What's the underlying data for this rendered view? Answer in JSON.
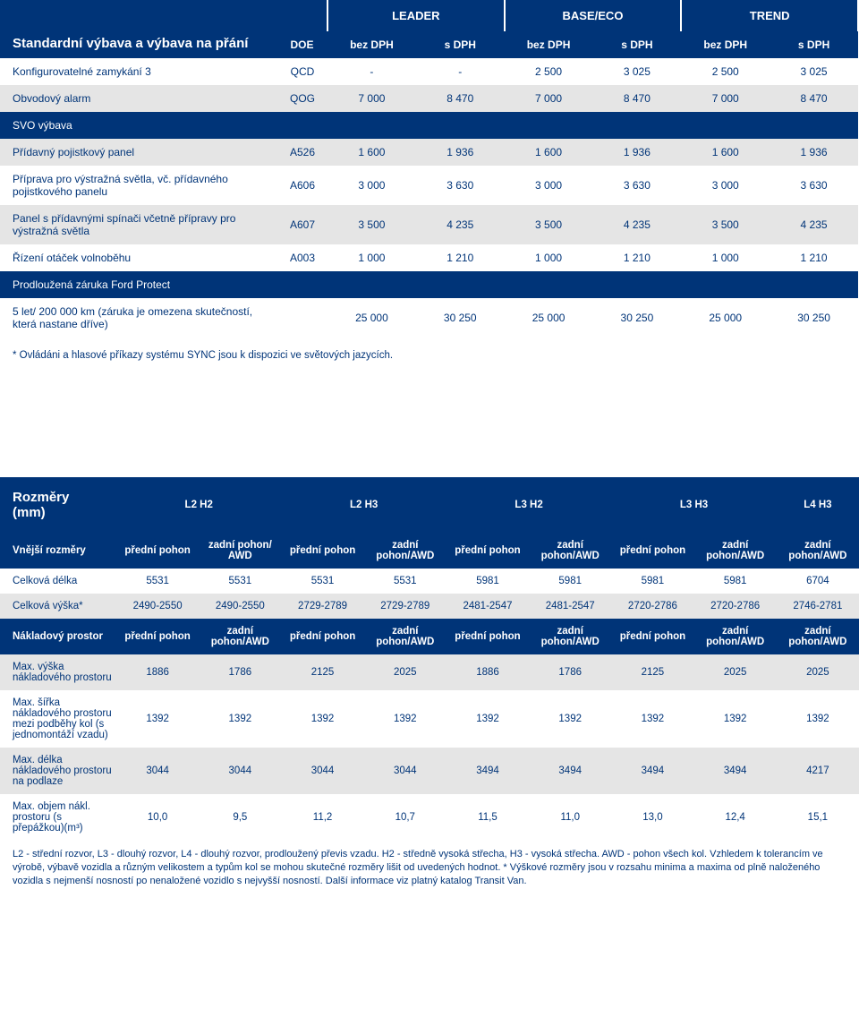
{
  "colors": {
    "brand": "#003478",
    "gray": "#e5e5e5",
    "white": "#ffffff"
  },
  "table1": {
    "title": "Standardní výbava a výbava na přání",
    "doe": "DOE",
    "groups": [
      "LEADER",
      "BASE/ECO",
      "TREND"
    ],
    "sub": [
      "bez DPH",
      "s DPH",
      "bez DPH",
      "s DPH",
      "bez DPH",
      "s DPH"
    ],
    "rows": [
      {
        "type": "data",
        "shade": "white",
        "label": "Konfigurovatelné zamykání 3",
        "code": "QCD",
        "v": [
          "-",
          "-",
          "2 500",
          "3 025",
          "2 500",
          "3 025"
        ]
      },
      {
        "type": "data",
        "shade": "gray",
        "label": "Obvodový alarm",
        "code": "QOG",
        "v": [
          "7 000",
          "8 470",
          "7 000",
          "8 470",
          "7 000",
          "8 470"
        ]
      },
      {
        "type": "section",
        "label": "SVO výbava"
      },
      {
        "type": "data",
        "shade": "gray",
        "label": "Přídavný pojistkový panel",
        "code": "A526",
        "v": [
          "1 600",
          "1 936",
          "1 600",
          "1 936",
          "1 600",
          "1 936"
        ]
      },
      {
        "type": "data",
        "shade": "white",
        "label": "Příprava pro výstražná světla, vč. přídavného pojistkového panelu",
        "code": "A606",
        "v": [
          "3 000",
          "3 630",
          "3 000",
          "3 630",
          "3 000",
          "3 630"
        ]
      },
      {
        "type": "data",
        "shade": "gray",
        "label": "Panel s přídavnými spínači  včetně přípravy pro výstražná světla",
        "code": "A607",
        "v": [
          "3 500",
          "4 235",
          "3 500",
          "4 235",
          "3 500",
          "4 235"
        ]
      },
      {
        "type": "data",
        "shade": "white",
        "label": "Řízení otáček volnoběhu",
        "code": "A003",
        "v": [
          "1 000",
          "1 210",
          "1 000",
          "1 210",
          "1 000",
          "1 210"
        ]
      },
      {
        "type": "section",
        "label": "Prodloužená záruka Ford Protect"
      },
      {
        "type": "data",
        "shade": "white",
        "label": "5 let/ 200 000 km (záruka je  omezena skutečností, která nastane dříve)",
        "code": "",
        "v": [
          "25 000",
          "30 250",
          "25 000",
          "30 250",
          "25 000",
          "30 250"
        ]
      }
    ],
    "footnote": "* Ovládáni a hlasové příkazy systému SYNC jsou k dispozici ve světových jazycích."
  },
  "table2": {
    "corner": "Rozměry (mm)",
    "groups": [
      "L2 H2",
      "L2 H3",
      "L3 H2",
      "L3 H3",
      "L4 H3"
    ],
    "sec_outer": {
      "label": "Vnější rozměry",
      "sub": [
        "přední pohon",
        "zadní pohon/ AWD",
        "přední pohon",
        "zadní pohon/AWD",
        "přední pohon",
        "zadní pohon/AWD",
        "přední pohon",
        "zadní pohon/AWD",
        "zadní pohon/AWD"
      ]
    },
    "outer_rows": [
      {
        "shade": "white",
        "label": "Celková délka",
        "v": [
          "5531",
          "5531",
          "5531",
          "5531",
          "5981",
          "5981",
          "5981",
          "5981",
          "6704"
        ]
      },
      {
        "shade": "gray",
        "label": "Celková výška*",
        "v": [
          "2490-2550",
          "2490-2550",
          "2729-2789",
          "2729-2789",
          "2481-2547",
          "2481-2547",
          "2720-2786",
          "2720-2786",
          "2746-2781"
        ]
      }
    ],
    "sec_cargo": {
      "label": "Nákladový prostor",
      "sub": [
        "přední pohon",
        "zadní pohon/AWD",
        "přední pohon",
        "zadní pohon/AWD",
        "přední pohon",
        "zadní pohon/AWD",
        "přední pohon",
        "zadní pohon/AWD",
        "zadní pohon/AWD"
      ]
    },
    "cargo_rows": [
      {
        "shade": "gray",
        "label": "Max. výška nákladového prostoru",
        "v": [
          "1886",
          "1786",
          "2125",
          "2025",
          "1886",
          "1786",
          "2125",
          "2025",
          "2025"
        ]
      },
      {
        "shade": "white",
        "label": "Max. šířka nákladového prostoru mezi podběhy kol (s jednomontáží vzadu)",
        "v": [
          "1392",
          "1392",
          "1392",
          "1392",
          "1392",
          "1392",
          "1392",
          "1392",
          "1392"
        ]
      },
      {
        "shade": "gray",
        "label": "Max. délka nákladového prostoru na podlaze",
        "v": [
          "3044",
          "3044",
          "3044",
          "3044",
          "3494",
          "3494",
          "3494",
          "3494",
          "4217"
        ]
      },
      {
        "shade": "white",
        "label": "Max. objem nákl. prostoru (s přepážkou)(m³)",
        "v": [
          "10,0",
          "9,5",
          "11,2",
          "10,7",
          "11,5",
          "11,0",
          "13,0",
          "12,4",
          "15,1"
        ]
      }
    ],
    "note": "L2 - střední rozvor, L3 - dlouhý rozvor, L4 - dlouhý rozvor, prodloužený převis vzadu. H2 - středně vysoká střecha, H3 - vysoká střecha. AWD - pohon všech kol. Vzhledem k tolerancím ve výrobě, výbavě vozidla a různým velikostem a typům kol se mohou skutečné rozměry lišit od uvedených hodnot. * Výškové rozměry jsou v rozsahu minima a maxima od plně naloženého vozidla s nejmenší nosností po nenaložené vozidlo s nejvyšší nosností. Další informace viz platný katalog Transit Van."
  }
}
